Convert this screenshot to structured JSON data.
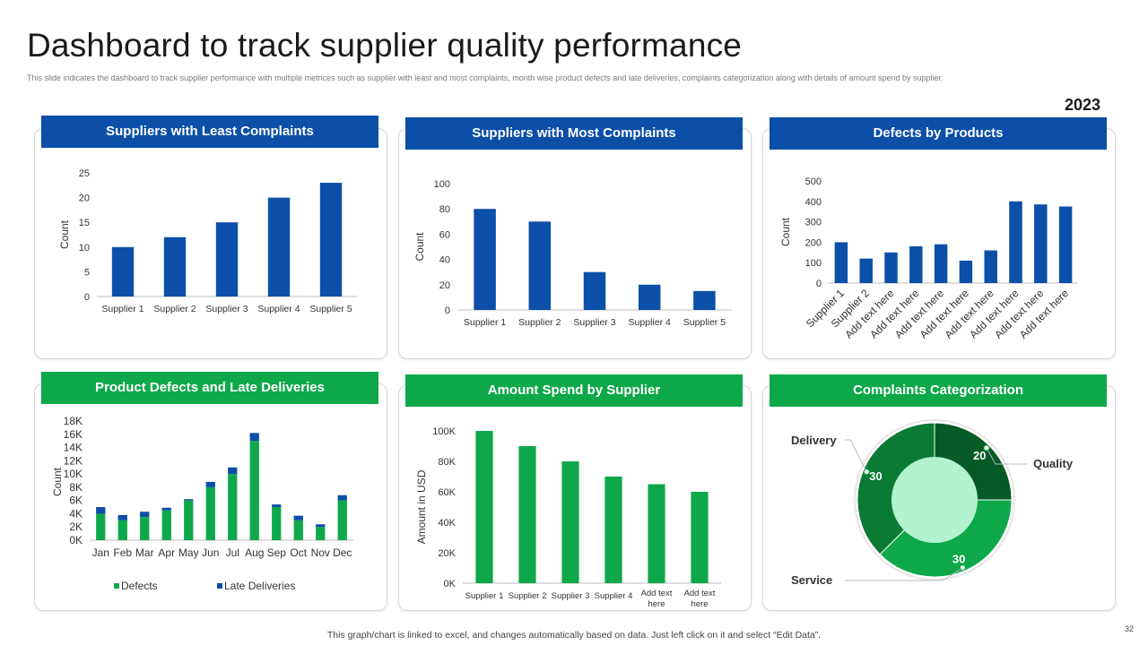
{
  "title": "Dashboard to track supplier quality performance",
  "subtitle": "This slide indicates the dashboard to track supplier performance with multiple metrices such as supplier with least and most complaints, month wise product defects and late deliveries, complaints categorization along with details of amount spend by supplier.",
  "year": "2023",
  "footer": "This graph/chart is linked to excel, and changes automatically based on data. Just left click on it and select “Edit Data”.",
  "page_number": "32",
  "colors": {
    "blue": "#0b4fa8",
    "green": "#0ea84a",
    "dark_green": "#0a7a35",
    "darkest_green": "#055a26",
    "light_green": "#b3f2cf"
  },
  "chart_data": [
    {
      "id": "least",
      "type": "bar",
      "title": "Suppliers with Least Complaints",
      "ylabel": "Count",
      "ylim": [
        0,
        25
      ],
      "yticks": [
        "0",
        "5",
        "10",
        "15",
        "20",
        "25"
      ],
      "categories": [
        "Supplier 1",
        "Supplier 2",
        "Supplier 3",
        "Supplier 4",
        "Supplier 5"
      ],
      "values": [
        10,
        12,
        15,
        20,
        23
      ]
    },
    {
      "id": "most",
      "type": "bar",
      "title": "Suppliers with Most Complaints",
      "ylabel": "Count",
      "ylim": [
        0,
        100
      ],
      "yticks": [
        "0",
        "20",
        "40",
        "60",
        "80",
        "100"
      ],
      "categories": [
        "Supplier 1",
        "Supplier 2",
        "Supplier 3",
        "Supplier 4",
        "Supplier 5"
      ],
      "values": [
        80,
        70,
        30,
        20,
        15
      ]
    },
    {
      "id": "defects",
      "type": "bar",
      "title": "Defects by Products",
      "ylabel": "Count",
      "ylim": [
        0,
        500
      ],
      "yticks": [
        "0",
        "100",
        "200",
        "300",
        "400",
        "500"
      ],
      "categories": [
        "Supplier 1",
        "Supplier 2",
        "Add text here",
        "Add text here",
        "Add text here",
        "Add text here",
        "Add text here",
        "Add text here",
        "Add text here",
        "Add text here"
      ],
      "values": [
        200,
        120,
        150,
        180,
        190,
        110,
        160,
        400,
        385,
        375
      ]
    },
    {
      "id": "monthly",
      "type": "bar",
      "stacked": true,
      "title": "Product Defects and Late Deliveries",
      "ylabel": "Count",
      "ylim": [
        0,
        18000
      ],
      "yticks": [
        "0K",
        "2K",
        "4K",
        "6K",
        "8K",
        "10K",
        "12K",
        "14K",
        "16K",
        "18K"
      ],
      "categories": [
        "Jan",
        "Feb",
        "Mar",
        "Apr",
        "May",
        "Jun",
        "Jul",
        "Aug",
        "Sep",
        "Oct",
        "Nov",
        "Dec"
      ],
      "series": [
        {
          "name": "Defects",
          "values": [
            4000,
            3000,
            3500,
            4500,
            6000,
            8000,
            10000,
            15000,
            5000,
            3000,
            2000,
            6000
          ]
        },
        {
          "name": "Late Deliveries",
          "values": [
            1000,
            800,
            800,
            400,
            200,
            800,
            1000,
            1200,
            400,
            700,
            400,
            800
          ]
        }
      ],
      "legend": "bottom"
    },
    {
      "id": "spend",
      "type": "bar",
      "title": "Amount Spend by Supplier",
      "ylabel": "Amount in USD",
      "ylim": [
        0,
        100000
      ],
      "yticks": [
        "0K",
        "20K",
        "40K",
        "60K",
        "80K",
        "100K"
      ],
      "categories": [
        "Supplier 1",
        "Supplier 2",
        "Supplier 3",
        "Supplier 4",
        "Add text here",
        "Add text here"
      ],
      "values": [
        100000,
        90000,
        80000,
        70000,
        65000,
        60000
      ]
    },
    {
      "id": "complaints",
      "type": "pie",
      "title": "Complaints Categorization",
      "slices": [
        {
          "name": "Quality",
          "value": 20,
          "label": "20"
        },
        {
          "name": "Service",
          "value": 30,
          "label": "30"
        },
        {
          "name": "Delivery",
          "value": 30,
          "label": "30"
        }
      ]
    }
  ]
}
